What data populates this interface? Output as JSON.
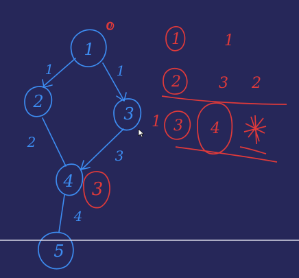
{
  "colors": {
    "background": "#262759",
    "blue_ink": "#3d8df2",
    "red_ink": "#e03a3a",
    "divider": "#d8d8e8"
  },
  "graph": {
    "nodes": [
      {
        "id": "node-1",
        "label": "1"
      },
      {
        "id": "node-2",
        "label": "2"
      },
      {
        "id": "node-3",
        "label": "3"
      },
      {
        "id": "node-4",
        "label": "4"
      },
      {
        "id": "node-5",
        "label": "5"
      }
    ],
    "marks": {
      "node1_mark": "0",
      "n2_in": "1",
      "n3_in": "1",
      "n4_from2": "2",
      "n4_from3": "3",
      "n5_in": "4",
      "n4_red_value": "3"
    }
  },
  "table": {
    "row1": {
      "node": "1",
      "val": "1"
    },
    "row2": {
      "node": "2",
      "val1": "3",
      "val2": "2"
    },
    "row3": {
      "left_mark": "1",
      "node_a": "3",
      "node_b": "4",
      "crossed": "*"
    }
  }
}
